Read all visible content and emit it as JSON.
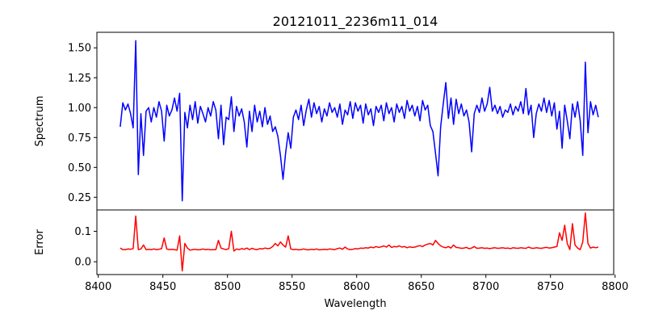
{
  "chart_data": [
    {
      "type": "line",
      "title": "20121011_2236m11_014",
      "xlabel": "",
      "ylabel": "Spectrum",
      "xlim": [
        8400,
        8800
      ],
      "ylim": [
        0.144,
        1.63
      ],
      "grid": false,
      "color": "#0000ff",
      "yticks": [
        0.25,
        0.5,
        0.75,
        1.0,
        1.25,
        1.5
      ],
      "ytick_labels": [
        "0.25",
        "0.50",
        "0.75",
        "1.00",
        "1.25",
        "1.50"
      ],
      "x_start": 8417,
      "x_step": 2,
      "values": [
        0.84,
        1.04,
        0.98,
        1.03,
        0.95,
        0.83,
        1.56,
        0.44,
        0.95,
        0.6,
        0.97,
        1.0,
        0.88,
        1.0,
        0.92,
        1.05,
        0.97,
        0.72,
        1.02,
        0.93,
        0.98,
        1.08,
        0.97,
        1.12,
        0.22,
        0.96,
        0.83,
        1.02,
        0.9,
        1.05,
        0.87,
        1.01,
        0.95,
        0.88,
        1.0,
        0.93,
        1.05,
        0.98,
        0.74,
        1.02,
        0.69,
        0.92,
        0.9,
        1.09,
        0.8,
        1.01,
        0.93,
        0.99,
        0.88,
        0.67,
        0.97,
        0.8,
        1.02,
        0.88,
        0.97,
        0.84,
        1.0,
        0.86,
        0.93,
        0.8,
        0.84,
        0.76,
        0.6,
        0.4,
        0.62,
        0.79,
        0.66,
        0.92,
        0.98,
        0.9,
        1.02,
        0.85,
        0.98,
        1.07,
        0.92,
        1.04,
        0.95,
        1.01,
        0.88,
        0.99,
        0.93,
        1.04,
        0.96,
        1.0,
        0.92,
        1.03,
        0.86,
        0.98,
        0.94,
        1.05,
        0.91,
        1.04,
        0.97,
        1.02,
        0.87,
        1.03,
        0.94,
        0.99,
        0.85,
        1.01,
        0.96,
        1.02,
        0.89,
        1.04,
        0.95,
        1.0,
        0.88,
        1.03,
        0.96,
        1.01,
        0.91,
        1.06,
        0.97,
        1.02,
        0.93,
        1.01,
        0.89,
        1.06,
        0.98,
        1.02,
        0.85,
        0.8,
        0.62,
        0.43,
        0.84,
        1.03,
        1.21,
        0.91,
        1.08,
        0.86,
        1.07,
        0.95,
        1.03,
        0.93,
        0.98,
        0.88,
        0.63,
        0.95,
        1.02,
        0.96,
        1.08,
        0.97,
        1.03,
        1.17,
        0.97,
        1.02,
        0.95,
        1.01,
        0.92,
        0.98,
        0.96,
        1.03,
        0.94,
        1.01,
        0.97,
        1.05,
        0.95,
        1.16,
        0.94,
        1.02,
        0.75,
        0.95,
        1.03,
        0.97,
        1.08,
        0.96,
        1.06,
        0.93,
        1.04,
        0.82,
        0.97,
        0.66,
        1.02,
        0.89,
        0.74,
        1.03,
        0.92,
        1.05,
        0.89,
        0.6,
        1.38,
        0.79,
        1.05,
        0.94,
        1.02,
        0.92
      ]
    },
    {
      "type": "line",
      "title": "",
      "xlabel": "Wavelength",
      "ylabel": "Error",
      "xlim": [
        8400,
        8800
      ],
      "ylim": [
        -0.042,
        0.17
      ],
      "grid": false,
      "color": "#ff0000",
      "yticks": [
        0.0,
        0.1
      ],
      "ytick_labels": [
        "0.0",
        "0.1"
      ],
      "xticks": [
        8400,
        8450,
        8500,
        8550,
        8600,
        8650,
        8700,
        8750,
        8800
      ],
      "xtick_labels": [
        "8400",
        "8450",
        "8500",
        "8550",
        "8600",
        "8650",
        "8700",
        "8750",
        "8800"
      ],
      "x_start": 8417,
      "x_step": 2,
      "values": [
        0.045,
        0.04,
        0.04,
        0.042,
        0.041,
        0.043,
        0.15,
        0.04,
        0.042,
        0.055,
        0.04,
        0.041,
        0.04,
        0.042,
        0.04,
        0.041,
        0.043,
        0.078,
        0.042,
        0.04,
        0.041,
        0.04,
        0.038,
        0.085,
        -0.03,
        0.06,
        0.045,
        0.038,
        0.04,
        0.041,
        0.039,
        0.04,
        0.042,
        0.04,
        0.041,
        0.039,
        0.04,
        0.04,
        0.07,
        0.045,
        0.042,
        0.04,
        0.043,
        0.1,
        0.035,
        0.042,
        0.04,
        0.043,
        0.041,
        0.045,
        0.04,
        0.044,
        0.041,
        0.04,
        0.043,
        0.042,
        0.045,
        0.043,
        0.044,
        0.05,
        0.06,
        0.052,
        0.065,
        0.055,
        0.048,
        0.085,
        0.042,
        0.04,
        0.041,
        0.039,
        0.04,
        0.042,
        0.04,
        0.039,
        0.041,
        0.04,
        0.042,
        0.039,
        0.04,
        0.041,
        0.04,
        0.042,
        0.041,
        0.04,
        0.043,
        0.045,
        0.041,
        0.048,
        0.042,
        0.04,
        0.041,
        0.043,
        0.042,
        0.045,
        0.044,
        0.046,
        0.045,
        0.048,
        0.046,
        0.05,
        0.047,
        0.049,
        0.052,
        0.048,
        0.055,
        0.047,
        0.05,
        0.049,
        0.052,
        0.048,
        0.05,
        0.046,
        0.049,
        0.047,
        0.048,
        0.051,
        0.053,
        0.05,
        0.055,
        0.058,
        0.06,
        0.055,
        0.07,
        0.06,
        0.052,
        0.048,
        0.046,
        0.05,
        0.045,
        0.055,
        0.047,
        0.046,
        0.044,
        0.045,
        0.047,
        0.043,
        0.045,
        0.05,
        0.044,
        0.045,
        0.046,
        0.044,
        0.045,
        0.043,
        0.045,
        0.046,
        0.044,
        0.045,
        0.046,
        0.044,
        0.045,
        0.043,
        0.046,
        0.045,
        0.044,
        0.046,
        0.045,
        0.044,
        0.048,
        0.045,
        0.044,
        0.046,
        0.045,
        0.044,
        0.046,
        0.047,
        0.045,
        0.046,
        0.048,
        0.05,
        0.095,
        0.07,
        0.12,
        0.06,
        0.04,
        0.125,
        0.055,
        0.045,
        0.04,
        0.065,
        0.16,
        0.06,
        0.045,
        0.048,
        0.046,
        0.048
      ]
    }
  ]
}
